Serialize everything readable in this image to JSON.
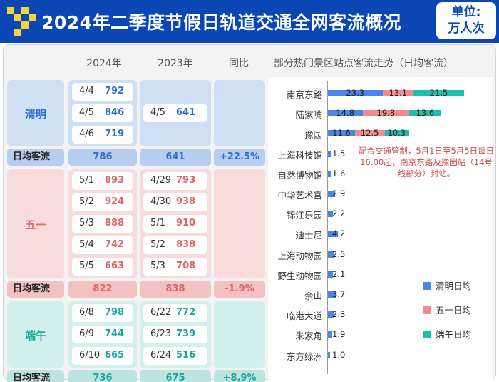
{
  "header": {
    "title": "2024年二季度节假日轨道交通全网客流概况",
    "unit_line1": "单位:",
    "unit_line2": "万人次"
  },
  "columns": {
    "y2024": "2024年",
    "y2023": "2023年",
    "yoy": "同比",
    "chart_title": "部分热门景区站点客流走势（日均客流）"
  },
  "avg_label": "日均客流",
  "sections": [
    {
      "name": "清明",
      "rows2024": [
        {
          "date": "4/4",
          "value": "792"
        },
        {
          "date": "4/5",
          "value": "846"
        },
        {
          "date": "4/6",
          "value": "719"
        }
      ],
      "rows2023": [
        {
          "date": "4/5",
          "value": "641"
        }
      ],
      "avg2024": "786",
      "avg2023": "641",
      "yoy": "+22.5%",
      "colors": {
        "bg": "#cfe0f5",
        "accent": "#2f6fd1",
        "avg_bg": "#b8cef0"
      }
    },
    {
      "name": "五一",
      "rows2024": [
        {
          "date": "5/1",
          "value": "893"
        },
        {
          "date": "5/2",
          "value": "924"
        },
        {
          "date": "5/3",
          "value": "888"
        },
        {
          "date": "5/4",
          "value": "742"
        },
        {
          "date": "5/5",
          "value": "663"
        }
      ],
      "rows2023": [
        {
          "date": "4/29",
          "value": "793"
        },
        {
          "date": "4/30",
          "value": "938"
        },
        {
          "date": "5/1",
          "value": "910"
        },
        {
          "date": "5/2",
          "value": "838"
        },
        {
          "date": "5/3",
          "value": "708"
        }
      ],
      "avg2024": "822",
      "avg2023": "838",
      "yoy": "-1.9%",
      "colors": {
        "bg": "#f8dcdc",
        "accent": "#e06464",
        "avg_bg": "#f2c2c2"
      }
    },
    {
      "name": "端午",
      "rows2024": [
        {
          "date": "6/8",
          "value": "798"
        },
        {
          "date": "6/9",
          "value": "744"
        },
        {
          "date": "6/10",
          "value": "665"
        }
      ],
      "rows2023": [
        {
          "date": "6/22",
          "value": "772"
        },
        {
          "date": "6/23",
          "value": "739"
        },
        {
          "date": "6/24",
          "value": "516"
        }
      ],
      "avg2024": "736",
      "avg2023": "675",
      "yoy": "+8.9%",
      "colors": {
        "bg": "#d2f0ec",
        "accent": "#1aa89a",
        "avg_bg": "#bde5df"
      }
    }
  ],
  "chart_data": {
    "type": "bar",
    "orientation": "horizontal",
    "stacked": true,
    "title": "部分热门景区站点客流走势（日均客流）",
    "categories": [
      "南京东路",
      "陆家嘴",
      "豫园",
      "上海科技馆",
      "自然博物馆",
      "中华艺术宫",
      "锦江乐园",
      "迪士尼",
      "上海动物园",
      "野生动物园",
      "佘山",
      "临港大道",
      "朱家角",
      "东方绿洲"
    ],
    "series": [
      {
        "name": "清明日均",
        "color": "#4a86e8",
        "values": [
          23.3,
          14.8,
          11.6,
          1.5,
          1.6,
          2.9,
          2.2,
          4.2,
          2.5,
          2.1,
          3.7,
          2.3,
          1.9,
          1.0
        ]
      },
      {
        "name": "五一日均",
        "color": "#f28b8b",
        "values": [
          13.1,
          19.8,
          12.5,
          null,
          null,
          null,
          null,
          null,
          null,
          null,
          null,
          null,
          null,
          null
        ]
      },
      {
        "name": "端午日均",
        "color": "#1fbfb0",
        "values": [
          21.5,
          13.6,
          10.3,
          null,
          null,
          null,
          null,
          null,
          null,
          null,
          null,
          null,
          null,
          null
        ]
      }
    ],
    "annotation": "配合交通管制，5月1日至5月5日每日16:00起，南京东路及豫园站（14号线部分）封站。",
    "legend_position": "right"
  }
}
